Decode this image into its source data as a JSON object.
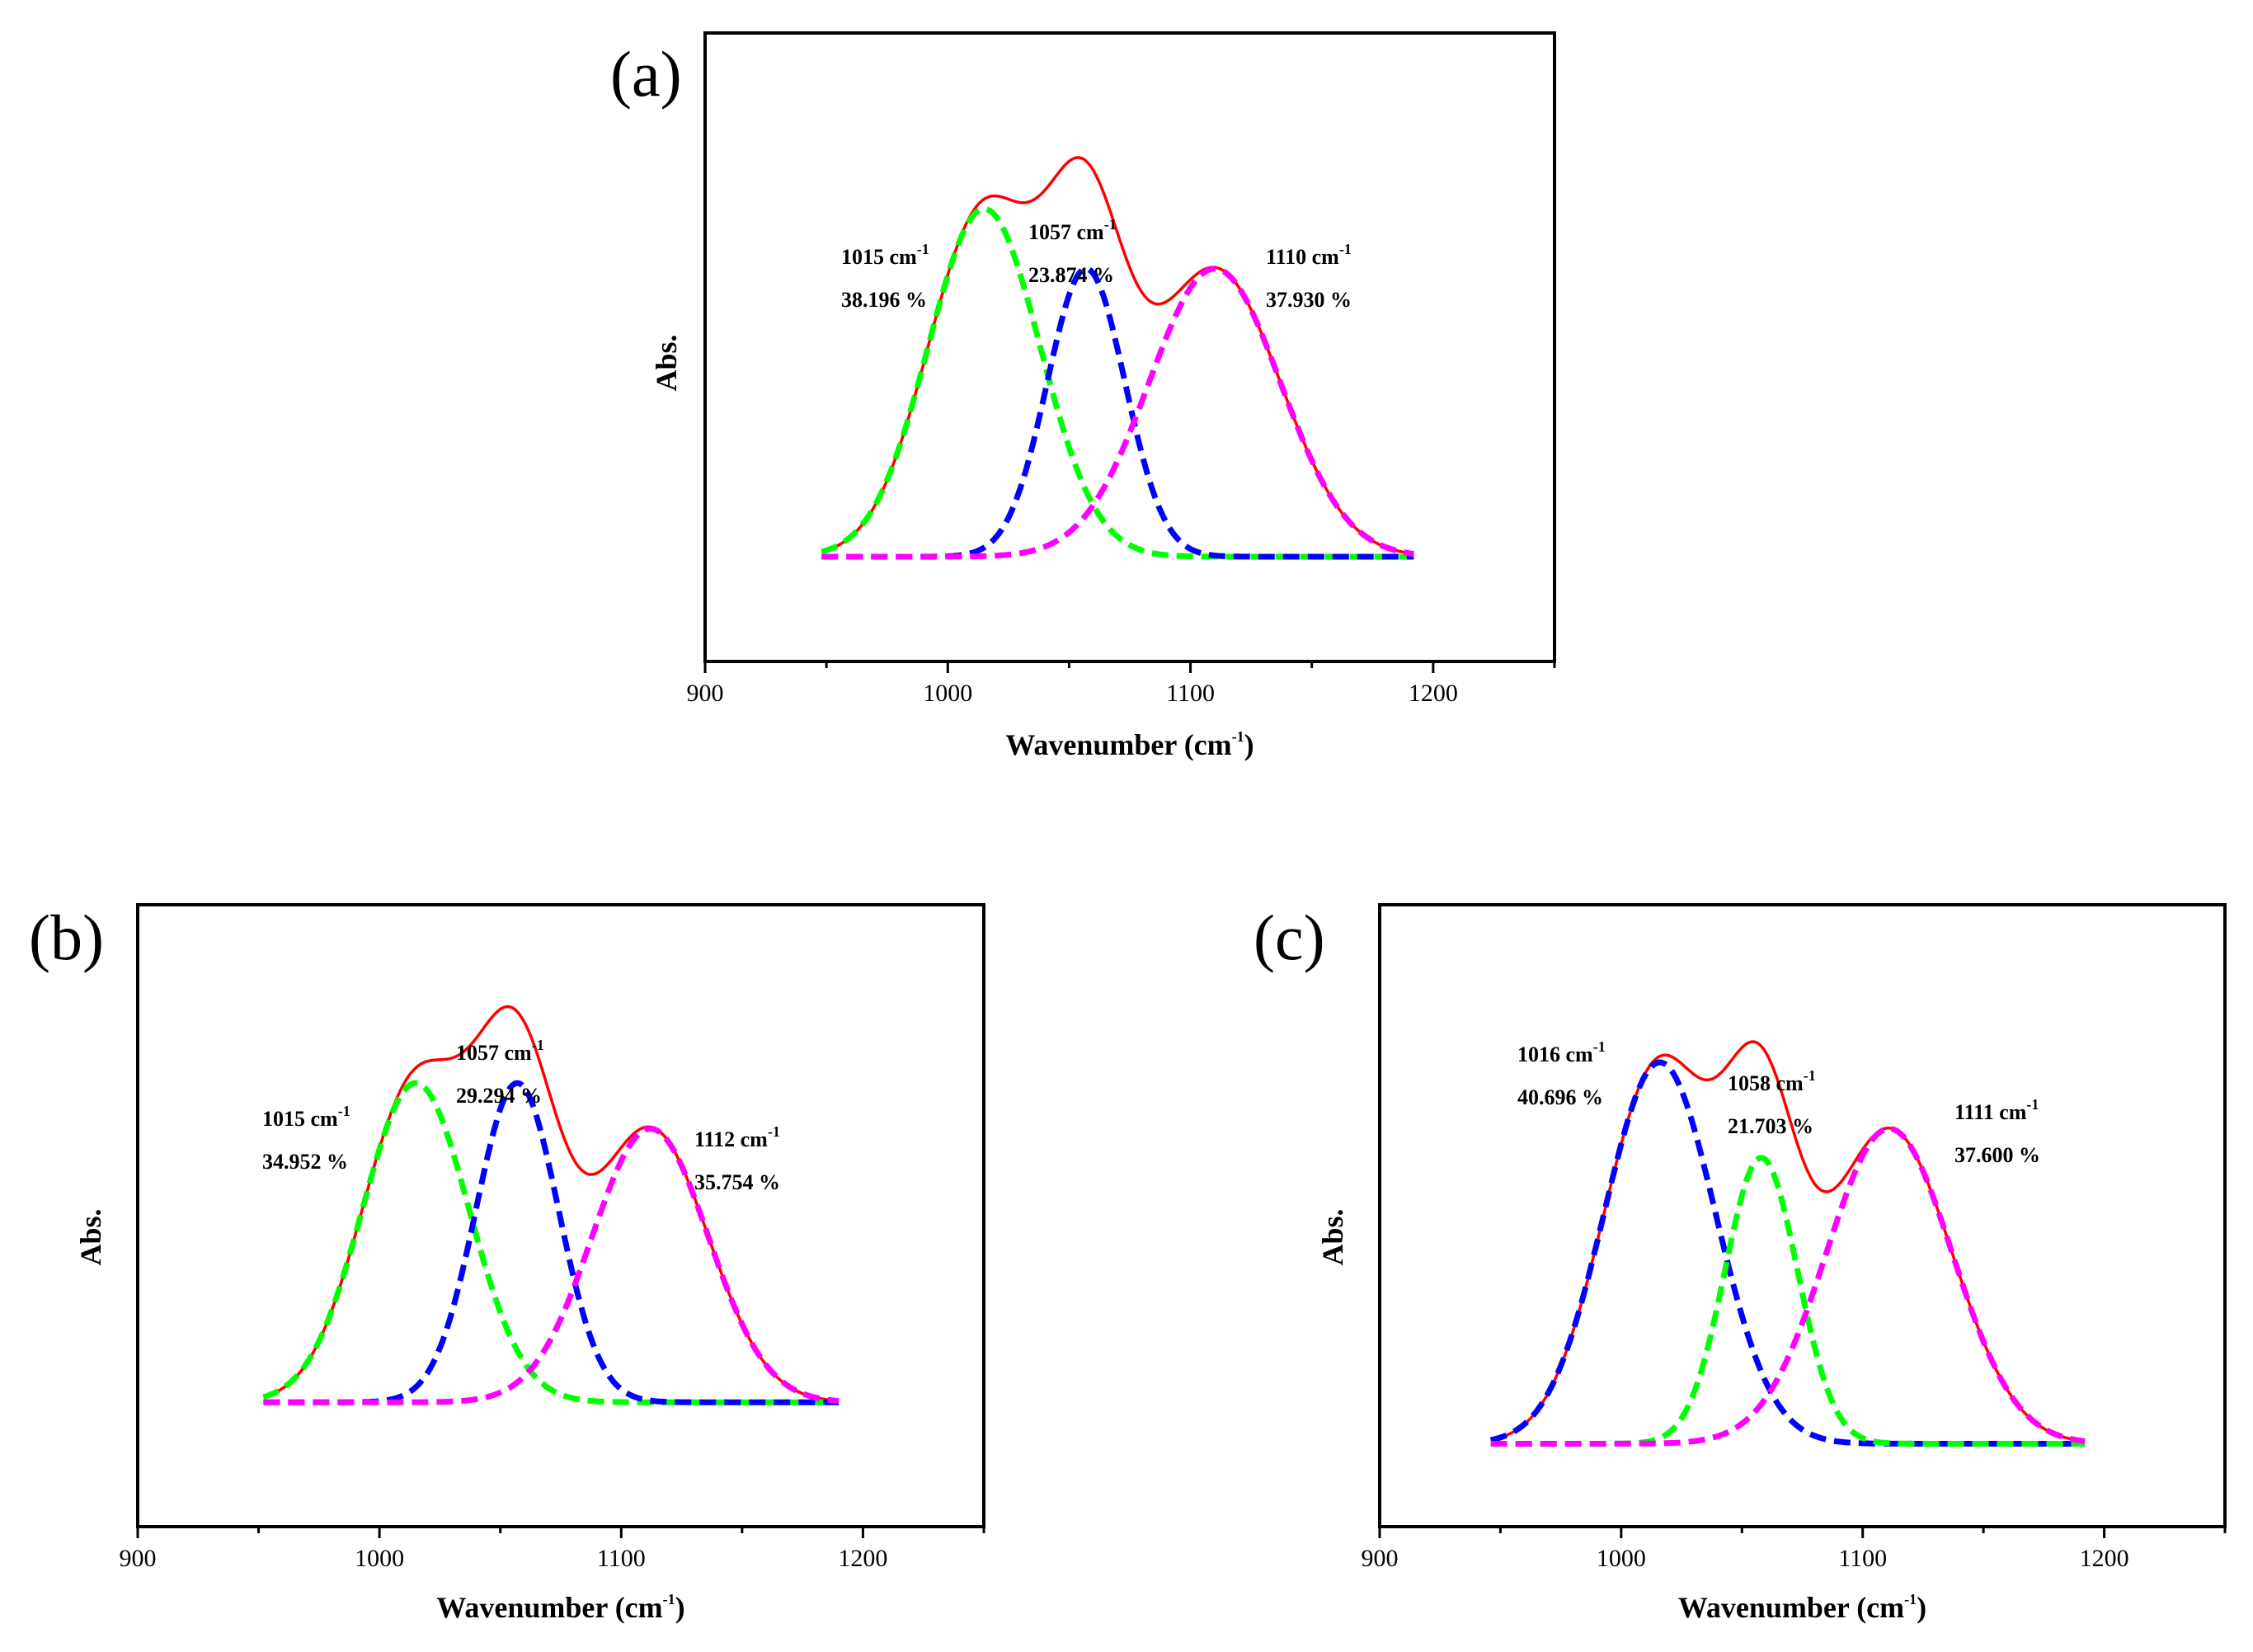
{
  "chart_data": [
    {
      "panel": "(a)",
      "type": "line",
      "xlabel": "Wavenumber (cm",
      "xlabel_sup": "-1",
      "xlabel_end": ")",
      "ylabel": "Abs.",
      "xlim": [
        900,
        1250
      ],
      "ylim": [
        -0.28,
        1.4
      ],
      "xticks": [
        900,
        1000,
        1100,
        1200
      ],
      "x_range": [
        948,
        1192
      ],
      "series": [
        {
          "name": "fit",
          "color": "#ff0000",
          "style": "solid"
        },
        {
          "name": "component-1",
          "color": "#00ff00",
          "style": "dashed",
          "center": 1015,
          "height": 0.93,
          "width": 23
        },
        {
          "name": "component-2",
          "color": "#0000ff",
          "style": "dashed",
          "center": 1057,
          "height": 0.77,
          "width": 16
        },
        {
          "name": "component-3",
          "color": "#ff00ff",
          "style": "dashed",
          "center": 1110,
          "height": 0.77,
          "width": 27
        }
      ],
      "annotations": [
        {
          "peak": "1015 cm",
          "sup": "-1",
          "percent": "38.196 %"
        },
        {
          "peak": "1057 cm",
          "sup": "-1",
          "percent": "23.874 %"
        },
        {
          "peak": "1110 cm",
          "sup": "-1",
          "percent": "37.930 %"
        }
      ]
    },
    {
      "panel": "(b)",
      "type": "line",
      "xlabel": "Wavenumber (cm",
      "xlabel_sup": "-1",
      "xlabel_end": ")",
      "ylabel": "Abs.",
      "xlim": [
        900,
        1250
      ],
      "ylim": [
        -0.3,
        1.2
      ],
      "xticks": [
        900,
        1000,
        1100,
        1200
      ],
      "x_range": [
        952,
        1190
      ],
      "series": [
        {
          "name": "fit",
          "color": "#ff0000",
          "style": "solid"
        },
        {
          "name": "component-1",
          "color": "#00ff00",
          "style": "dashed",
          "center": 1015,
          "height": 0.77,
          "width": 22
        },
        {
          "name": "component-2",
          "color": "#0000ff",
          "style": "dashed",
          "center": 1057,
          "height": 0.77,
          "width": 17
        },
        {
          "name": "component-3",
          "color": "#ff00ff",
          "style": "dashed",
          "center": 1112,
          "height": 0.66,
          "width": 24
        }
      ],
      "annotations": [
        {
          "peak": "1015 cm",
          "sup": "-1",
          "percent": "34.952 %"
        },
        {
          "peak": "1057 cm",
          "sup": "-1",
          "percent": "29.294 %"
        },
        {
          "peak": "1112 cm",
          "sup": "-1",
          "percent": "35.754 %"
        }
      ]
    },
    {
      "panel": "(c)",
      "type": "line",
      "xlabel": "Wavenumber (cm",
      "xlabel_sup": "-1",
      "xlabel_end": ")",
      "ylabel": "Abs.",
      "xlim": [
        900,
        1250
      ],
      "ylim": [
        -0.2,
        1.3
      ],
      "xticks": [
        900,
        1000,
        1100,
        1200
      ],
      "x_range": [
        946,
        1192
      ],
      "series": [
        {
          "name": "fit",
          "color": "#ff0000",
          "style": "solid"
        },
        {
          "name": "component-1",
          "color": "#0000ff",
          "style": "dashed",
          "center": 1016,
          "height": 0.92,
          "width": 23
        },
        {
          "name": "component-2",
          "color": "#00ff00",
          "style": "dashed",
          "center": 1058,
          "height": 0.69,
          "width": 15
        },
        {
          "name": "component-3",
          "color": "#ff00ff",
          "style": "dashed",
          "center": 1111,
          "height": 0.76,
          "width": 26
        }
      ],
      "annotations": [
        {
          "peak": "1016 cm",
          "sup": "-1",
          "percent": "40.696 %"
        },
        {
          "peak": "1058 cm",
          "sup": "-1",
          "percent": "21.703 %"
        },
        {
          "peak": "1111 cm",
          "sup": "-1",
          "percent": "37.600 %"
        }
      ]
    }
  ]
}
